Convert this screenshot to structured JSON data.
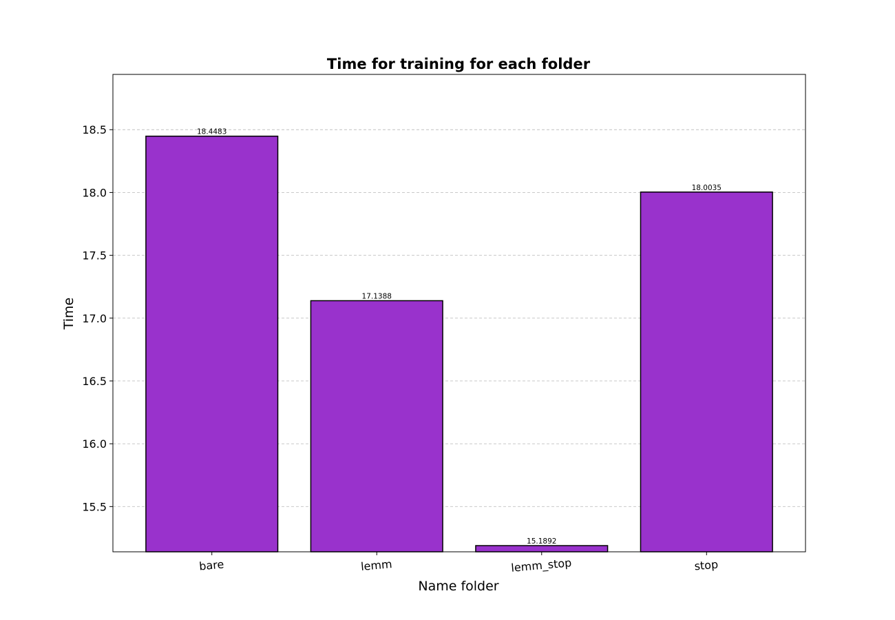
{
  "chart_data": {
    "type": "bar",
    "title": "Time for training for each folder",
    "xlabel": "Name folder",
    "ylabel": "Time",
    "categories": [
      "bare",
      "lemm",
      "lemm_stop",
      "stop"
    ],
    "values": [
      18.4483,
      17.1388,
      15.1892,
      18.0035
    ],
    "value_labels": [
      "18.4483",
      "17.1388",
      "15.1892",
      "18.0035"
    ],
    "ylim": [
      15.14,
      18.94
    ],
    "yticks": [
      15.5,
      16.0,
      16.5,
      17.0,
      17.5,
      18.0,
      18.5
    ],
    "ytick_labels": [
      "15.5",
      "16.0",
      "16.5",
      "17.0",
      "17.5",
      "18.0",
      "18.5"
    ],
    "grid": "horizontal dashed",
    "bar_color": "#9932cc",
    "bar_edge_color": "#000000",
    "grid_color": "#c0c0c0"
  }
}
